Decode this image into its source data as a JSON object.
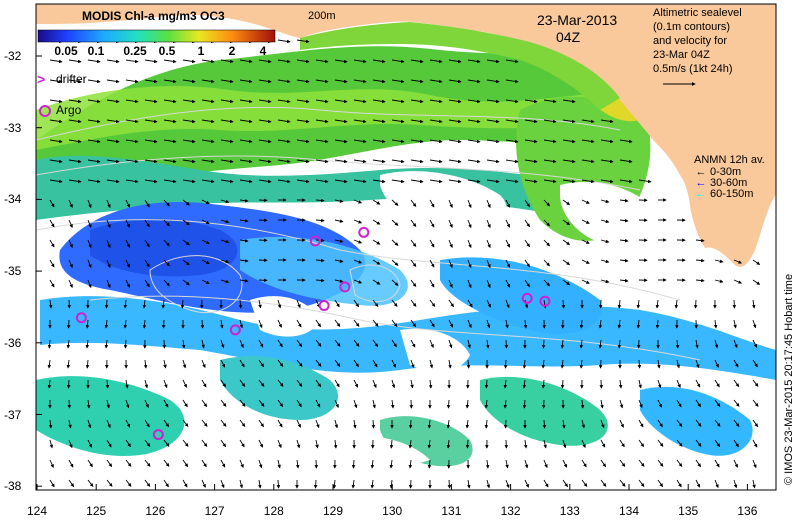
{
  "colorbar": {
    "title": "MODIS Chl-a mg/m3 OC3",
    "ticks": [
      "0.05",
      "0.1",
      "0.25",
      "0.5",
      "1",
      "2",
      "4"
    ]
  },
  "isobath_label": "200m",
  "date": "23-Mar-2013",
  "time": "04Z",
  "altimetry_legend": {
    "lines": [
      "Altimetric sealevel",
      "(0.1m contours)",
      "and velocity for",
      "23-Mar 04Z"
    ],
    "scale_label": "0.5m/s (1kt 24h)"
  },
  "anmn_legend": {
    "title": "ANMN 12h av.",
    "items": [
      {
        "label": "0-30m",
        "color": "#000000"
      },
      {
        "label": "30-60m",
        "color": "#0000ff"
      },
      {
        "label": "60-150m",
        "color": "#00ffff"
      }
    ]
  },
  "legend": {
    "drifter": "drifter",
    "argo": "Argo"
  },
  "copyright": "© IMOS 23-Mar-2015 20:17:45 Hobart time",
  "axes": {
    "x_ticks": [
      "124",
      "125",
      "126",
      "127",
      "128",
      "129",
      "130",
      "131",
      "132",
      "133",
      "134",
      "135",
      "136"
    ],
    "y_ticks": [
      "-32",
      "-33",
      "-34",
      "-35",
      "-36",
      "-37",
      "-38"
    ]
  },
  "colors": {
    "land": "#f9c89b",
    "clouds": "#ffffff",
    "argo_marker": "#d020d0",
    "drifter_marker": "#d020d0"
  },
  "argo_floats": [
    {
      "lon": 124.75,
      "lat": -35.65
    },
    {
      "lon": 126.05,
      "lat": -37.28
    },
    {
      "lon": 127.35,
      "lat": -35.82
    },
    {
      "lon": 128.7,
      "lat": -34.58
    },
    {
      "lon": 128.85,
      "lat": -35.48
    },
    {
      "lon": 129.2,
      "lat": -35.22
    },
    {
      "lon": 129.52,
      "lat": -34.46
    },
    {
      "lon": 132.28,
      "lat": -35.38
    },
    {
      "lon": 132.58,
      "lat": -35.42
    }
  ]
}
